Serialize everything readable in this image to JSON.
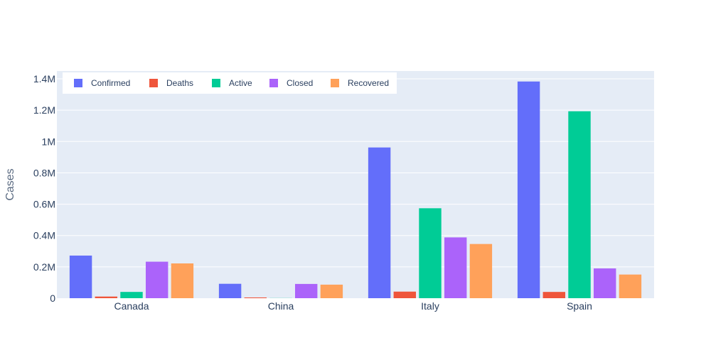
{
  "chart_data": {
    "type": "bar",
    "title": "",
    "xlabel": "",
    "ylabel": "Cases",
    "categories": [
      "Canada",
      "China",
      "Italy",
      "Spain"
    ],
    "ylim": [
      0,
      1450000
    ],
    "yticks": [
      {
        "value": 0,
        "label": "0"
      },
      {
        "value": 200000,
        "label": "0.2M"
      },
      {
        "value": 400000,
        "label": "0.4M"
      },
      {
        "value": 600000,
        "label": "0.6M"
      },
      {
        "value": 800000,
        "label": "0.8M"
      },
      {
        "value": 1000000,
        "label": "1M"
      },
      {
        "value": 1200000,
        "label": "1.2M"
      },
      {
        "value": 1400000,
        "label": "1.4M"
      }
    ],
    "series": [
      {
        "name": "Confirmed",
        "color": "#636efa",
        "values": [
          272000,
          92000,
          962000,
          1383000
        ]
      },
      {
        "name": "Deaths",
        "color": "#ef553b",
        "values": [
          10500,
          4700,
          42000,
          40000
        ]
      },
      {
        "name": "Active",
        "color": "#00cc96",
        "values": [
          40000,
          700,
          574000,
          1193000
        ]
      },
      {
        "name": "Closed",
        "color": "#ab63fa",
        "values": [
          233000,
          91000,
          388000,
          190000
        ]
      },
      {
        "name": "Recovered",
        "color": "#ffa15a",
        "values": [
          222000,
          86500,
          346000,
          151000
        ]
      }
    ],
    "legend_position": "top-left",
    "grid": true,
    "plot_background": "#e5ecf6",
    "grid_color": "#ffffff"
  }
}
